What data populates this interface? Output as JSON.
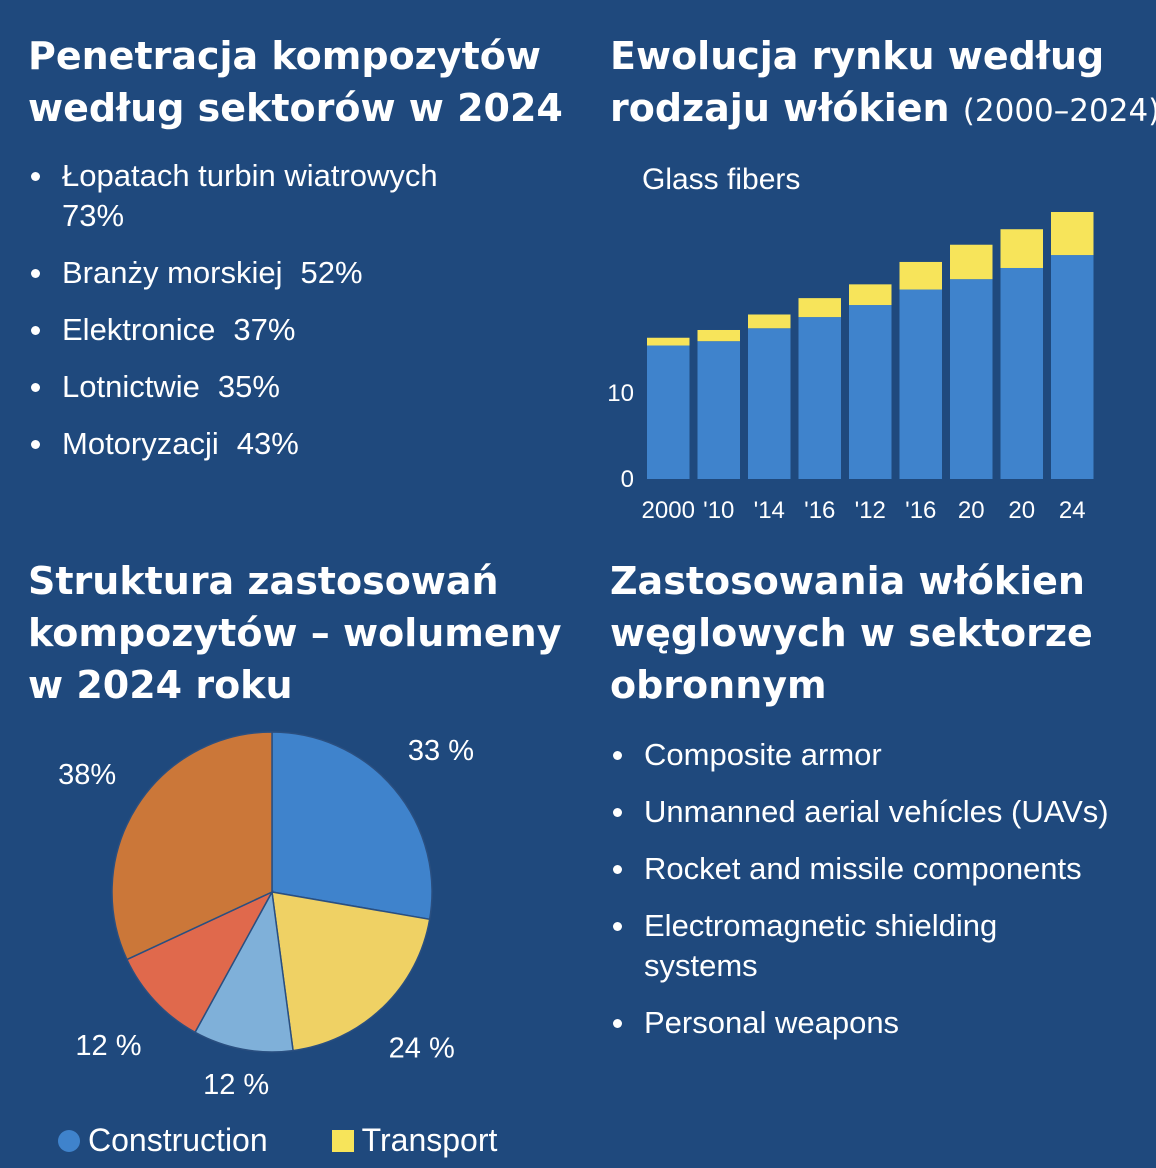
{
  "penetration": {
    "title_line1": "Penetracja kompozytów",
    "title_line2": "według sektorów w 2024",
    "items": [
      {
        "label": "Łopatach turbin wiatrowych",
        "value": "73%"
      },
      {
        "label": "Branży morskiej",
        "value": "52%"
      },
      {
        "label": "Elektronice",
        "value": "37%"
      },
      {
        "label": "Lotnictwie",
        "value": "35%"
      },
      {
        "label": "Motoryzacji",
        "value": "43%"
      }
    ]
  },
  "market": {
    "title_line1": "Ewolucja rynku według",
    "title_line2": "rodzaju włókien",
    "title_years": "(2000–2024)"
  },
  "structure": {
    "title_line1": "Struktura zastosowań",
    "title_line2": "kompozytów – wolumeny",
    "title_line3": "w 2024 roku"
  },
  "defense": {
    "title_line1": "Zastosowania włókien",
    "title_line2": "węglowych w sektorze",
    "title_line3": "obronnym",
    "items": [
      "Composite armor",
      "Unmanned aerial vehícles (UAVs)",
      "Rocket and missile components",
      "Electromagnetic shielding systems",
      "Personal weapons"
    ],
    "item4_line1": "Electromagnetic shielding",
    "item4_line2": "systems"
  },
  "legend": {
    "items": [
      {
        "label": "Construction",
        "color": "#3f83cc",
        "shape": "circle"
      },
      {
        "label": "Transport",
        "color": "#f7e45a",
        "shape": "square"
      }
    ]
  },
  "colors": {
    "background": "#1f497d",
    "bar_blue": "#3f83cc",
    "bar_yellow": "#f7e45a",
    "pie_blue": "#3f83cc",
    "pie_yellow": "#efd164",
    "pie_lightblue": "#7fb0d9",
    "pie_red": "#e0694c",
    "pie_orange": "#cb7739"
  },
  "chart_data": [
    {
      "type": "bar",
      "stacked": true,
      "series_label": "Glass fibers",
      "categories": [
        "2000",
        "'10",
        "'14",
        "'16",
        "'12",
        "'16",
        "20",
        "20",
        "24"
      ],
      "series": [
        {
          "color": "#3f83cc",
          "values": [
            15.5,
            16.0,
            17.5,
            18.8,
            20.2,
            22.0,
            23.2,
            24.5,
            26.0
          ]
        },
        {
          "color": "#f7e45a",
          "values": [
            0.9,
            1.3,
            1.6,
            2.2,
            2.4,
            3.2,
            4.0,
            4.5,
            5.0
          ]
        }
      ],
      "y_ticks": [
        0,
        10
      ],
      "ylim": [
        0,
        31
      ]
    },
    {
      "type": "pie",
      "slices": [
        {
          "label": "33 %",
          "value": 33,
          "color": "#3f83cc"
        },
        {
          "label": "24 %",
          "value": 24,
          "color": "#efd164"
        },
        {
          "label": "12 %",
          "value": 12,
          "color": "#7fb0d9"
        },
        {
          "label": "12 %",
          "value": 12,
          "color": "#e0694c"
        },
        {
          "label": "38%",
          "value": 38,
          "color": "#cb7739"
        }
      ]
    }
  ]
}
